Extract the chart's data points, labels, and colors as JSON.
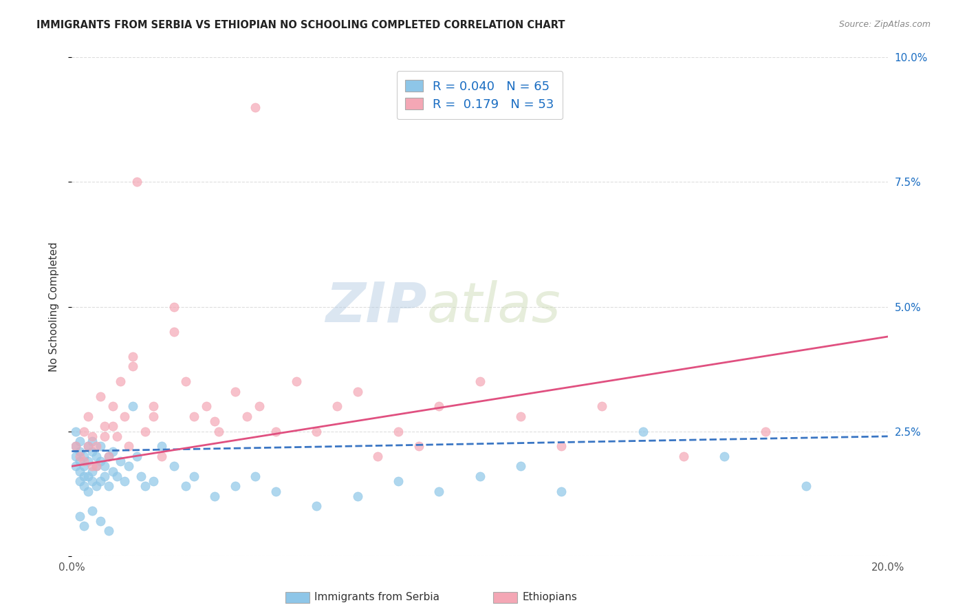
{
  "title": "IMMIGRANTS FROM SERBIA VS ETHIOPIAN NO SCHOOLING COMPLETED CORRELATION CHART",
  "source": "Source: ZipAtlas.com",
  "ylabel": "No Schooling Completed",
  "xlim": [
    0.0,
    0.2
  ],
  "ylim": [
    0.0,
    0.1
  ],
  "xticks": [
    0.0,
    0.05,
    0.1,
    0.15,
    0.2
  ],
  "xticklabels": [
    "0.0%",
    "",
    "",
    "",
    "20.0%"
  ],
  "yticks": [
    0.0,
    0.025,
    0.05,
    0.075,
    0.1
  ],
  "yticklabels_right": [
    "",
    "2.5%",
    "5.0%",
    "7.5%",
    "10.0%"
  ],
  "serbia_R": 0.04,
  "serbia_N": 65,
  "ethiopia_R": 0.179,
  "ethiopia_N": 53,
  "serbia_color": "#8ec6e8",
  "ethiopia_color": "#f4a7b5",
  "serbia_line_color": "#3a76c4",
  "ethiopia_line_color": "#e05080",
  "watermark_zip": "ZIP",
  "watermark_atlas": "atlas",
  "background_color": "#ffffff",
  "grid_color": "#dddddd",
  "serbia_scatter_x": [
    0.001,
    0.001,
    0.001,
    0.001,
    0.002,
    0.002,
    0.002,
    0.002,
    0.002,
    0.003,
    0.003,
    0.003,
    0.003,
    0.004,
    0.004,
    0.004,
    0.004,
    0.005,
    0.005,
    0.005,
    0.005,
    0.006,
    0.006,
    0.006,
    0.007,
    0.007,
    0.007,
    0.008,
    0.008,
    0.009,
    0.009,
    0.01,
    0.01,
    0.011,
    0.012,
    0.013,
    0.014,
    0.015,
    0.016,
    0.017,
    0.018,
    0.02,
    0.022,
    0.025,
    0.028,
    0.03,
    0.035,
    0.04,
    0.045,
    0.05,
    0.06,
    0.07,
    0.08,
    0.09,
    0.1,
    0.11,
    0.12,
    0.14,
    0.16,
    0.18,
    0.002,
    0.003,
    0.005,
    0.007,
    0.009
  ],
  "serbia_scatter_y": [
    0.02,
    0.025,
    0.018,
    0.022,
    0.019,
    0.023,
    0.021,
    0.017,
    0.015,
    0.016,
    0.02,
    0.014,
    0.018,
    0.022,
    0.016,
    0.019,
    0.013,
    0.021,
    0.017,
    0.015,
    0.023,
    0.018,
    0.014,
    0.02,
    0.019,
    0.015,
    0.022,
    0.016,
    0.018,
    0.02,
    0.014,
    0.017,
    0.021,
    0.016,
    0.019,
    0.015,
    0.018,
    0.03,
    0.02,
    0.016,
    0.014,
    0.015,
    0.022,
    0.018,
    0.014,
    0.016,
    0.012,
    0.014,
    0.016,
    0.013,
    0.01,
    0.012,
    0.015,
    0.013,
    0.016,
    0.018,
    0.013,
    0.025,
    0.02,
    0.014,
    0.008,
    0.006,
    0.009,
    0.007,
    0.005
  ],
  "ethiopia_scatter_x": [
    0.001,
    0.002,
    0.003,
    0.003,
    0.004,
    0.005,
    0.005,
    0.006,
    0.007,
    0.008,
    0.009,
    0.01,
    0.011,
    0.012,
    0.013,
    0.014,
    0.015,
    0.016,
    0.018,
    0.02,
    0.022,
    0.025,
    0.028,
    0.03,
    0.033,
    0.036,
    0.04,
    0.043,
    0.046,
    0.05,
    0.055,
    0.06,
    0.065,
    0.07,
    0.075,
    0.08,
    0.085,
    0.09,
    0.1,
    0.11,
    0.12,
    0.13,
    0.15,
    0.17,
    0.004,
    0.006,
    0.008,
    0.01,
    0.015,
    0.02,
    0.025,
    0.035,
    0.045
  ],
  "ethiopia_scatter_y": [
    0.022,
    0.02,
    0.025,
    0.019,
    0.028,
    0.024,
    0.018,
    0.022,
    0.032,
    0.026,
    0.02,
    0.03,
    0.024,
    0.035,
    0.028,
    0.022,
    0.04,
    0.075,
    0.025,
    0.03,
    0.02,
    0.05,
    0.035,
    0.028,
    0.03,
    0.025,
    0.033,
    0.028,
    0.03,
    0.025,
    0.035,
    0.025,
    0.03,
    0.033,
    0.02,
    0.025,
    0.022,
    0.03,
    0.035,
    0.028,
    0.022,
    0.03,
    0.02,
    0.025,
    0.022,
    0.018,
    0.024,
    0.026,
    0.038,
    0.028,
    0.045,
    0.027,
    0.09
  ],
  "serbia_trend_x": [
    0.0,
    0.2
  ],
  "serbia_trend_y": [
    0.021,
    0.024
  ],
  "ethiopia_trend_x": [
    0.0,
    0.2
  ],
  "ethiopia_trend_y": [
    0.018,
    0.044
  ]
}
